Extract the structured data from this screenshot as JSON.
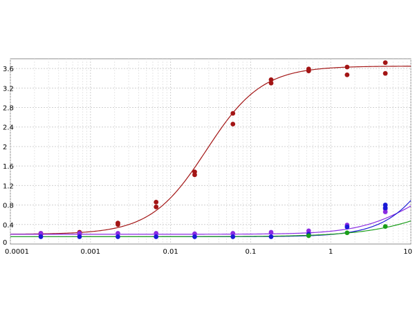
{
  "chart_data": {
    "type": "scatter",
    "x_scale": "log",
    "xlim": [
      0.0001,
      10
    ],
    "ylim": [
      0,
      3.8
    ],
    "grid": true,
    "x_ticks": [
      {
        "value": 0.0001,
        "label": "0.0001"
      },
      {
        "value": 0.001,
        "label": "0.001"
      },
      {
        "value": 0.01,
        "label": "0.01"
      },
      {
        "value": 0.1,
        "label": "0.1"
      },
      {
        "value": 1,
        "label": "1"
      },
      {
        "value": 10,
        "label": "10"
      }
    ],
    "y_ticks": [
      {
        "value": 0,
        "label": "0"
      },
      {
        "value": 0.4,
        "label": "0.4"
      },
      {
        "value": 0.8,
        "label": "0.8"
      },
      {
        "value": 1.2,
        "label": "1.2"
      },
      {
        "value": 1.6,
        "label": "1.6"
      },
      {
        "value": 2,
        "label": "2"
      },
      {
        "value": 2.4,
        "label": "2.4"
      },
      {
        "value": 2.8,
        "label": "2.8"
      },
      {
        "value": 3.2,
        "label": "3.2"
      },
      {
        "value": 3.6,
        "label": "3.6"
      }
    ],
    "series": [
      {
        "color": "#a31515",
        "curve": {
          "bottom": 0.2,
          "top": 3.65,
          "ec50": 0.028,
          "hill": 1.25
        },
        "points": [
          [
            0.00024,
            0.2
          ],
          [
            0.00024,
            0.22
          ],
          [
            0.00073,
            0.21
          ],
          [
            0.00073,
            0.24
          ],
          [
            0.0022,
            0.4
          ],
          [
            0.0022,
            0.43
          ],
          [
            0.0066,
            0.76
          ],
          [
            0.0066,
            0.86
          ],
          [
            0.02,
            1.42
          ],
          [
            0.02,
            1.48
          ],
          [
            0.06,
            2.46
          ],
          [
            0.06,
            2.68
          ],
          [
            0.18,
            3.3
          ],
          [
            0.18,
            3.37
          ],
          [
            0.53,
            3.55
          ],
          [
            0.53,
            3.59
          ],
          [
            1.6,
            3.47
          ],
          [
            1.6,
            3.63
          ],
          [
            4.8,
            3.5
          ],
          [
            4.8,
            3.72
          ]
        ]
      },
      {
        "color": "#8a2be2",
        "curve": {
          "bottom": 0.2,
          "top": 1.5,
          "ec50": 12,
          "hill": 1.2
        },
        "points": [
          [
            0.00024,
            0.22
          ],
          [
            0.00073,
            0.22
          ],
          [
            0.0022,
            0.22
          ],
          [
            0.0066,
            0.22
          ],
          [
            0.02,
            0.21
          ],
          [
            0.06,
            0.22
          ],
          [
            0.18,
            0.24
          ],
          [
            0.53,
            0.27
          ],
          [
            1.6,
            0.39
          ],
          [
            4.8,
            0.66
          ],
          [
            4.8,
            0.72
          ]
        ]
      },
      {
        "color": "#1a1ad6",
        "curve": {
          "bottom": 0.15,
          "top": 4.0,
          "ec50": 30,
          "hill": 1.3
        },
        "points": [
          [
            0.00024,
            0.15
          ],
          [
            0.00073,
            0.15
          ],
          [
            0.0022,
            0.15
          ],
          [
            0.0066,
            0.15
          ],
          [
            0.02,
            0.15
          ],
          [
            0.06,
            0.15
          ],
          [
            0.18,
            0.15
          ],
          [
            0.53,
            0.2
          ],
          [
            1.6,
            0.35
          ],
          [
            4.8,
            0.74
          ],
          [
            4.8,
            0.8
          ]
        ]
      },
      {
        "color": "#1a9e1a",
        "curve": {
          "bottom": 0.15,
          "top": 1.6,
          "ec50": 40,
          "hill": 0.9
        },
        "points": [
          [
            0.53,
            0.17
          ],
          [
            1.6,
            0.23
          ],
          [
            4.8,
            0.36
          ]
        ]
      }
    ]
  }
}
